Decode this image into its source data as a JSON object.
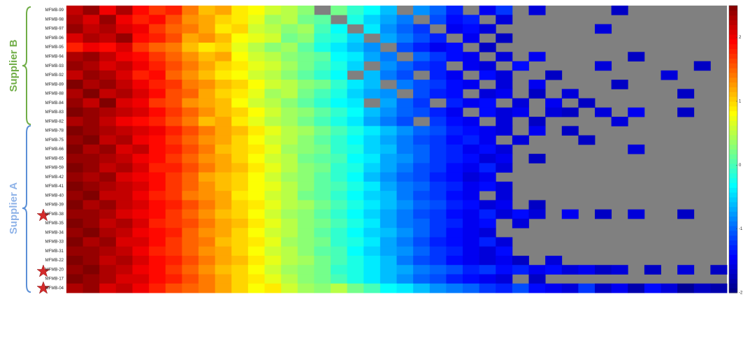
{
  "chart_data": {
    "type": "heatmap",
    "rows": [
      "MFMB-99",
      "MFMB-98",
      "MFMB-97",
      "MFMB-96",
      "MFMB-95",
      "MFMB-94",
      "MFMB-93",
      "MFMB-92",
      "MFMB-89",
      "MFMB-88",
      "MFMB-84",
      "MFMB-83",
      "MFMB-82",
      "MFMB-78",
      "MFMB-75",
      "MFMB-66",
      "MFMB-65",
      "MFMB-59",
      "MFMB-42",
      "MFMB-41",
      "MFMB-40",
      "MFMB-39",
      "MFMB-38",
      "MFMB-35",
      "MFMB-34",
      "MFMB-33",
      "MFMB-31",
      "MFMB-22",
      "MFMB-20",
      "MFMB-17",
      "MFMB-04"
    ],
    "categories": [
      null,
      null,
      null,
      null,
      null,
      null,
      null,
      null,
      null,
      null,
      null,
      null,
      null,
      null,
      null,
      null,
      null,
      null,
      null,
      null,
      null,
      null,
      null,
      null,
      null,
      null,
      null,
      null,
      null,
      null,
      null,
      null,
      null,
      null,
      null,
      null,
      null,
      null,
      null,
      null
    ],
    "values": [
      [
        2.2,
        2.4,
        2.0,
        2.3,
        1.9,
        1.7,
        1.8,
        1.4,
        1.1,
        1.2,
        0.9,
        0.8,
        0.6,
        0.5,
        0.3,
        null,
        0.2,
        -0.1,
        -0.3,
        -0.6,
        null,
        -0.8,
        -1.0,
        -1.3,
        null,
        -1.5,
        -1.2,
        null,
        -1.6,
        null,
        null,
        null,
        null,
        -1.7,
        null,
        null,
        null,
        null,
        null,
        null
      ],
      [
        2.3,
        2.1,
        2.4,
        2.0,
        1.8,
        1.9,
        1.6,
        1.3,
        1.2,
        1.0,
        0.9,
        0.7,
        0.4,
        0.5,
        0.2,
        0.1,
        null,
        -0.2,
        -0.5,
        -0.7,
        -0.9,
        null,
        -1.1,
        -1.4,
        -1.3,
        null,
        -1.6,
        null,
        null,
        null,
        null,
        null,
        null,
        null,
        null,
        null,
        null,
        null,
        null,
        null
      ],
      [
        2.4,
        2.2,
        2.3,
        2.1,
        2.0,
        1.7,
        1.5,
        1.4,
        1.2,
        0.9,
        1.0,
        0.6,
        0.5,
        0.3,
        0.4,
        0.0,
        -0.3,
        null,
        -0.4,
        -0.8,
        -1.0,
        -1.2,
        null,
        -1.5,
        -1.4,
        -1.6,
        null,
        null,
        null,
        null,
        null,
        null,
        -1.6,
        null,
        null,
        null,
        null,
        null,
        null,
        null
      ],
      [
        2.1,
        2.3,
        2.2,
        2.4,
        1.9,
        1.8,
        1.6,
        1.2,
        1.3,
        1.1,
        0.8,
        0.7,
        0.6,
        0.2,
        0.3,
        -0.1,
        -0.2,
        -0.5,
        null,
        -0.7,
        -0.9,
        -1.1,
        -1.3,
        null,
        -1.5,
        null,
        -1.7,
        null,
        null,
        null,
        null,
        null,
        null,
        null,
        null,
        null,
        null,
        null,
        null,
        null
      ],
      [
        1.8,
        2.0,
        1.9,
        2.1,
        1.7,
        1.5,
        1.4,
        1.1,
        0.9,
        1.0,
        0.7,
        0.5,
        0.3,
        0.4,
        0.1,
        -0.2,
        -0.4,
        -0.6,
        -0.8,
        null,
        -1.1,
        -1.3,
        -1.5,
        -1.4,
        null,
        -1.7,
        null,
        null,
        null,
        null,
        null,
        null,
        null,
        null,
        null,
        null,
        null,
        null,
        null,
        null
      ],
      [
        2.3,
        2.4,
        2.2,
        2.0,
        1.9,
        1.7,
        1.5,
        1.3,
        1.1,
        1.2,
        0.8,
        0.6,
        0.5,
        0.3,
        0.2,
        0.1,
        -0.3,
        -0.4,
        -0.7,
        -0.9,
        null,
        -1.0,
        -1.2,
        -1.4,
        -1.5,
        null,
        -1.6,
        null,
        -1.5,
        null,
        null,
        null,
        null,
        null,
        -1.7,
        null,
        null,
        null,
        null,
        null
      ],
      [
        2.4,
        2.3,
        2.1,
        2.2,
        2.0,
        1.8,
        1.6,
        1.4,
        1.2,
        1.0,
        0.9,
        0.7,
        0.6,
        0.4,
        0.2,
        0.0,
        -0.2,
        -0.5,
        null,
        -0.8,
        -1.0,
        -1.2,
        -1.3,
        null,
        -1.5,
        -1.6,
        null,
        -1.4,
        null,
        null,
        null,
        null,
        -1.6,
        null,
        null,
        null,
        null,
        null,
        -1.7,
        null
      ],
      [
        2.2,
        2.4,
        2.3,
        2.1,
        1.8,
        1.9,
        1.5,
        1.3,
        1.1,
        0.9,
        0.8,
        0.6,
        0.5,
        0.3,
        0.1,
        -0.1,
        -0.3,
        null,
        -0.6,
        -0.9,
        -1.1,
        null,
        -1.3,
        -1.5,
        null,
        -1.4,
        -1.6,
        null,
        null,
        -1.7,
        null,
        null,
        null,
        null,
        null,
        null,
        -1.6,
        null,
        null,
        null
      ],
      [
        2.5,
        2.3,
        2.4,
        2.2,
        2.0,
        1.8,
        1.7,
        1.4,
        1.3,
        1.1,
        1.0,
        0.8,
        0.6,
        0.5,
        0.3,
        0.2,
        -0.1,
        -0.4,
        -0.6,
        null,
        -0.9,
        -1.1,
        -1.2,
        -1.4,
        -1.5,
        null,
        -1.6,
        null,
        -1.5,
        null,
        null,
        null,
        null,
        -1.7,
        null,
        null,
        null,
        null,
        null,
        null
      ],
      [
        2.3,
        2.5,
        2.2,
        2.3,
        2.1,
        1.9,
        1.6,
        1.5,
        1.2,
        1.0,
        0.9,
        0.7,
        0.4,
        0.5,
        0.2,
        0.0,
        -0.2,
        -0.5,
        -0.7,
        -0.8,
        null,
        -1.1,
        -1.3,
        -1.4,
        null,
        -1.6,
        -1.5,
        null,
        -1.7,
        null,
        -1.6,
        null,
        null,
        null,
        null,
        null,
        null,
        -1.7,
        null,
        null
      ],
      [
        2.4,
        2.2,
        2.5,
        2.1,
        2.0,
        1.7,
        1.6,
        1.3,
        1.2,
        1.1,
        0.8,
        0.6,
        0.5,
        0.3,
        0.1,
        -0.1,
        -0.3,
        -0.4,
        null,
        -0.7,
        -1.0,
        -1.2,
        null,
        -1.3,
        -1.5,
        -1.4,
        null,
        -1.6,
        null,
        -1.5,
        null,
        -1.7,
        null,
        null,
        null,
        null,
        null,
        null,
        null,
        null
      ],
      [
        2.5,
        2.4,
        2.3,
        2.2,
        2.1,
        1.9,
        1.7,
        1.5,
        1.3,
        1.1,
        1.0,
        0.8,
        0.6,
        0.4,
        0.3,
        0.1,
        -0.1,
        -0.3,
        -0.6,
        -0.8,
        -1.0,
        -1.1,
        -1.3,
        -1.5,
        null,
        -1.4,
        -1.6,
        -1.5,
        null,
        -1.6,
        -1.7,
        null,
        -1.6,
        null,
        -1.5,
        null,
        null,
        -1.7,
        null,
        null
      ],
      [
        2.3,
        2.4,
        2.2,
        2.0,
        1.9,
        1.8,
        1.6,
        1.4,
        1.1,
        1.2,
        0.9,
        0.7,
        0.5,
        0.4,
        0.2,
        0.0,
        -0.2,
        -0.4,
        -0.7,
        -0.9,
        -1.1,
        null,
        -1.2,
        -1.4,
        -1.5,
        null,
        -1.6,
        null,
        -1.7,
        null,
        null,
        null,
        null,
        -1.6,
        null,
        null,
        null,
        null,
        null,
        null
      ],
      [
        2.5,
        2.4,
        2.3,
        2.2,
        2.1,
        2.0,
        1.8,
        1.6,
        1.4,
        1.2,
        1.1,
        0.9,
        0.7,
        0.5,
        0.4,
        0.2,
        0.0,
        -0.2,
        -0.4,
        -0.6,
        -0.8,
        -1.0,
        -1.1,
        -1.3,
        -1.4,
        -1.5,
        -1.6,
        null,
        -1.5,
        null,
        -1.7,
        null,
        null,
        null,
        null,
        null,
        null,
        null,
        null,
        null
      ],
      [
        2.4,
        2.5,
        2.2,
        2.3,
        2.0,
        1.9,
        1.7,
        1.5,
        1.3,
        1.2,
        1.0,
        0.8,
        0.6,
        0.5,
        0.3,
        0.1,
        -0.1,
        -0.3,
        -0.5,
        -0.7,
        -0.9,
        -1.1,
        -1.2,
        -1.4,
        -1.3,
        -1.5,
        null,
        -1.6,
        null,
        null,
        null,
        -1.7,
        null,
        null,
        null,
        null,
        null,
        null,
        null,
        null
      ],
      [
        2.5,
        2.3,
        2.4,
        2.1,
        2.2,
        1.9,
        1.8,
        1.6,
        1.4,
        1.1,
        1.0,
        0.9,
        0.7,
        0.4,
        0.3,
        0.2,
        -0.1,
        -0.2,
        -0.5,
        -0.6,
        -0.9,
        -1.0,
        -1.2,
        -1.3,
        -1.5,
        -1.4,
        -1.6,
        null,
        null,
        null,
        null,
        null,
        null,
        null,
        -1.6,
        null,
        null,
        null,
        null,
        null
      ],
      [
        2.4,
        2.4,
        2.3,
        2.2,
        2.0,
        1.9,
        1.7,
        1.5,
        1.3,
        1.2,
        1.0,
        0.8,
        0.6,
        0.5,
        0.2,
        0.1,
        0.0,
        -0.3,
        -0.4,
        -0.7,
        -0.8,
        -1.0,
        -1.2,
        -1.3,
        -1.4,
        -1.6,
        -1.5,
        null,
        -1.7,
        null,
        null,
        null,
        null,
        null,
        null,
        null,
        null,
        null,
        null,
        null
      ],
      [
        2.5,
        2.4,
        2.2,
        2.3,
        2.1,
        1.8,
        1.8,
        1.6,
        1.4,
        1.2,
        1.1,
        0.9,
        0.7,
        0.5,
        0.3,
        0.2,
        -0.1,
        -0.2,
        -0.5,
        -0.7,
        -0.9,
        -1.1,
        -1.2,
        -1.4,
        -1.5,
        -1.3,
        -1.6,
        null,
        null,
        null,
        null,
        null,
        null,
        null,
        null,
        null,
        null,
        null,
        null,
        null
      ],
      [
        2.4,
        2.3,
        2.4,
        2.1,
        2.0,
        1.9,
        1.7,
        1.5,
        1.2,
        1.1,
        1.0,
        0.8,
        0.6,
        0.4,
        0.3,
        0.1,
        -0.1,
        -0.3,
        -0.6,
        -0.8,
        -1.0,
        -1.1,
        -1.3,
        -1.4,
        -1.6,
        -1.5,
        null,
        null,
        null,
        null,
        null,
        null,
        null,
        null,
        null,
        null,
        null,
        null,
        null,
        null
      ],
      [
        2.5,
        2.4,
        2.3,
        2.2,
        2.1,
        1.9,
        1.7,
        1.5,
        1.3,
        1.1,
        1.0,
        0.8,
        0.7,
        0.5,
        0.3,
        0.1,
        0.0,
        -0.2,
        -0.4,
        -0.7,
        -0.9,
        -1.0,
        -1.2,
        -1.3,
        -1.5,
        -1.4,
        -1.6,
        null,
        null,
        null,
        null,
        null,
        null,
        null,
        null,
        null,
        null,
        null,
        null,
        null
      ],
      [
        2.4,
        2.5,
        2.2,
        2.2,
        2.0,
        1.8,
        1.7,
        1.4,
        1.3,
        1.2,
        0.9,
        0.8,
        0.6,
        0.5,
        0.2,
        0.1,
        -0.1,
        -0.3,
        -0.5,
        -0.6,
        -0.9,
        -1.1,
        -1.2,
        -1.4,
        -1.5,
        null,
        -1.6,
        null,
        null,
        null,
        null,
        null,
        null,
        null,
        null,
        null,
        null,
        null,
        null,
        null
      ],
      [
        2.5,
        2.3,
        2.4,
        2.2,
        2.1,
        1.9,
        1.8,
        1.6,
        1.4,
        1.2,
        1.0,
        0.9,
        0.7,
        0.5,
        0.4,
        0.2,
        0.0,
        -0.2,
        -0.4,
        -0.6,
        -0.8,
        -1.0,
        -1.1,
        -1.3,
        -1.4,
        -1.6,
        -1.5,
        null,
        -1.7,
        null,
        null,
        null,
        null,
        null,
        null,
        null,
        null,
        null,
        null,
        null
      ],
      [
        2.4,
        2.4,
        2.3,
        2.1,
        2.0,
        1.9,
        1.7,
        1.5,
        1.3,
        1.1,
        1.0,
        0.8,
        0.6,
        0.4,
        0.3,
        0.1,
        -0.1,
        -0.3,
        -0.5,
        -0.7,
        -0.9,
        -1.1,
        -1.2,
        -1.4,
        -1.5,
        -1.3,
        -1.6,
        -1.4,
        -1.6,
        null,
        -1.5,
        null,
        -1.7,
        null,
        -1.6,
        null,
        null,
        -1.7,
        null,
        null
      ],
      [
        2.5,
        2.4,
        2.2,
        2.3,
        2.1,
        1.8,
        1.7,
        1.6,
        1.4,
        1.2,
        1.1,
        0.9,
        0.7,
        0.5,
        0.3,
        0.2,
        0.0,
        -0.2,
        -0.4,
        -0.7,
        -0.9,
        -1.0,
        -1.2,
        -1.3,
        -1.5,
        -1.4,
        null,
        -1.6,
        null,
        null,
        null,
        null,
        null,
        null,
        null,
        null,
        null,
        null,
        null,
        null
      ],
      [
        2.4,
        2.5,
        2.3,
        2.2,
        2.0,
        1.9,
        1.8,
        1.5,
        1.3,
        1.2,
        1.0,
        0.8,
        0.6,
        0.5,
        0.3,
        0.1,
        -0.1,
        -0.3,
        -0.5,
        -0.6,
        -0.8,
        -1.0,
        -1.2,
        -1.4,
        -1.5,
        -1.6,
        null,
        null,
        null,
        null,
        null,
        null,
        null,
        null,
        null,
        null,
        null,
        null,
        null,
        null
      ],
      [
        2.5,
        2.3,
        2.4,
        2.1,
        2.1,
        1.9,
        1.7,
        1.5,
        1.4,
        1.1,
        1.0,
        0.9,
        0.7,
        0.4,
        0.3,
        0.2,
        -0.1,
        -0.2,
        -0.4,
        -0.7,
        -0.9,
        -1.1,
        -1.3,
        -1.4,
        -1.5,
        -1.3,
        -1.6,
        null,
        null,
        null,
        null,
        null,
        null,
        null,
        null,
        null,
        null,
        null,
        null,
        null
      ],
      [
        2.4,
        2.4,
        2.3,
        2.2,
        2.0,
        1.8,
        1.7,
        1.5,
        1.3,
        1.2,
        1.0,
        0.8,
        0.6,
        0.5,
        0.3,
        0.1,
        0.0,
        -0.3,
        -0.5,
        -0.7,
        -0.8,
        -1.0,
        -1.2,
        -1.3,
        -1.5,
        -1.6,
        -1.4,
        null,
        null,
        null,
        null,
        null,
        null,
        null,
        null,
        null,
        null,
        null,
        null,
        null
      ],
      [
        2.5,
        2.4,
        2.2,
        2.3,
        2.1,
        1.9,
        1.8,
        1.6,
        1.4,
        1.2,
        1.1,
        0.9,
        0.7,
        0.5,
        0.4,
        0.2,
        0.0,
        -0.2,
        -0.4,
        -0.6,
        -0.9,
        -1.1,
        -1.2,
        -1.4,
        -1.5,
        -1.6,
        -1.5,
        -1.7,
        null,
        -1.6,
        null,
        null,
        null,
        null,
        null,
        null,
        null,
        null,
        null,
        null
      ],
      [
        2.4,
        2.5,
        2.3,
        2.2,
        2.0,
        1.9,
        1.7,
        1.5,
        1.3,
        1.1,
        1.0,
        0.8,
        0.6,
        0.4,
        0.3,
        0.2,
        -0.1,
        -0.2,
        -0.4,
        -0.6,
        -0.7,
        -0.9,
        -1.0,
        -1.1,
        -1.3,
        -1.2,
        -1.4,
        -1.3,
        -1.5,
        -1.4,
        -1.6,
        -1.5,
        -1.7,
        -1.6,
        null,
        -1.7,
        null,
        -1.6,
        null,
        -1.7
      ],
      [
        2.5,
        2.4,
        2.3,
        2.1,
        2.1,
        1.9,
        1.8,
        1.6,
        1.4,
        1.2,
        1.0,
        0.9,
        0.7,
        0.5,
        0.3,
        0.2,
        0.0,
        -0.2,
        -0.4,
        -0.6,
        -0.8,
        -1.0,
        -1.1,
        -1.3,
        -1.4,
        -1.5,
        -1.6,
        null,
        -1.7,
        null,
        null,
        null,
        null,
        null,
        null,
        null,
        null,
        null,
        null,
        null
      ],
      [
        2.3,
        2.4,
        2.1,
        2.2,
        2.0,
        1.8,
        1.6,
        1.5,
        1.4,
        1.2,
        1.0,
        0.8,
        0.9,
        0.6,
        0.4,
        0.3,
        0.5,
        0.2,
        0.0,
        -0.3,
        -0.4,
        -0.6,
        -0.8,
        -0.9,
        -1.0,
        -1.2,
        -1.3,
        -1.1,
        -1.4,
        -1.5,
        -1.6,
        -1.2,
        -1.7,
        -1.5,
        -1.8,
        -1.4,
        -1.6,
        -1.9,
        -1.7,
        -1.8
      ]
    ],
    "missing_color": "#808080",
    "zlim": [
      -2,
      2.5
    ],
    "zticks": [
      -2,
      -1,
      0,
      1,
      2
    ],
    "groups": [
      "Supplier B",
      "Supplier A"
    ]
  }
}
